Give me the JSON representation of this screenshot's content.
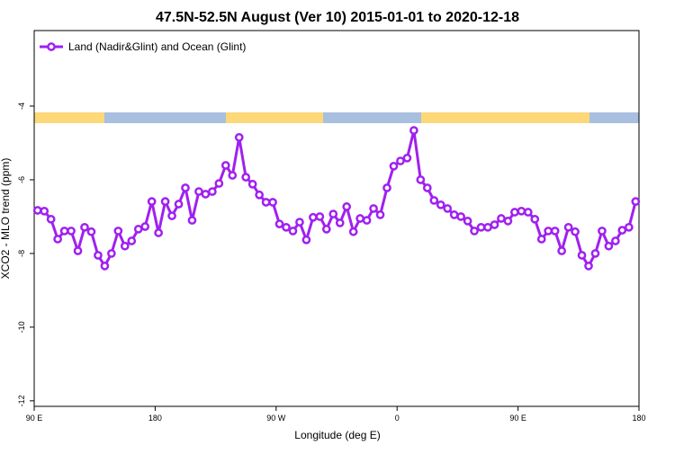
{
  "chart_data": {
    "type": "line",
    "title": "47.5N-52.5N August (Ver 10)   2015-01-01 to 2020-12-18",
    "xlabel": "Longitude (deg E)",
    "ylabel": "XCO2 - MLO trend (ppm)",
    "x": [
      92.5,
      97.5,
      102.5,
      107.5,
      112.5,
      117.5,
      122.5,
      127.5,
      132.5,
      137.5,
      142.5,
      147.5,
      152.5,
      157.5,
      162.5,
      167.5,
      172.5,
      177.5,
      182.5,
      187.5,
      192.5,
      197.5,
      202.5,
      207.5,
      212.5,
      217.5,
      222.5,
      227.5,
      232.5,
      237.5,
      242.5,
      247.5,
      252.5,
      257.5,
      262.5,
      267.5,
      272.5,
      277.5,
      282.5,
      287.5,
      292.5,
      297.5,
      302.5,
      307.5,
      312.5,
      317.5,
      322.5,
      327.5,
      332.5,
      337.5,
      342.5,
      347.5,
      352.5,
      357.5,
      362.5,
      367.5,
      372.5,
      377.5,
      382.5,
      387.5,
      392.5,
      397.5,
      402.5,
      407.5,
      412.5,
      417.5,
      422.5,
      427.5,
      432.5,
      437.5,
      442.5,
      447.5,
      452.5,
      457.5,
      462.5,
      467.5,
      472.5,
      477.5,
      482.5,
      487.5,
      492.5,
      497.5,
      502.5,
      507.5,
      512.5,
      517.5,
      522.5,
      527.5,
      532.5,
      537.5
    ],
    "series": [
      {
        "name": "Land (Nadir&Glint) and Ocean (Glint)",
        "color": "#a020f0",
        "values": [
          -6.83,
          -6.85,
          -7.07,
          -7.61,
          -7.39,
          -7.39,
          -7.93,
          -7.29,
          -7.41,
          -8.05,
          -8.34,
          -8.0,
          -7.39,
          -7.8,
          -7.66,
          -7.34,
          -7.27,
          -6.59,
          -7.44,
          -6.59,
          -6.98,
          -6.66,
          -6.22,
          -7.1,
          -6.32,
          -6.39,
          -6.32,
          -6.1,
          -5.61,
          -5.88,
          -4.85,
          -5.93,
          -6.12,
          -6.41,
          -6.61,
          -6.61,
          -7.2,
          -7.29,
          -7.39,
          -7.15,
          -7.63,
          -7.02,
          -7.0,
          -7.34,
          -6.93,
          -7.17,
          -6.73,
          -7.41,
          -7.05,
          -7.1,
          -6.78,
          -6.95,
          -6.22,
          -5.63,
          -5.49,
          -5.41,
          -4.66,
          -6.0,
          -6.22,
          -6.56,
          -6.68,
          -6.78,
          -6.95,
          -7.0,
          -7.12,
          -7.39,
          -7.29,
          -7.29,
          -7.22,
          -7.05,
          -7.12,
          -6.88,
          -6.85,
          -6.88,
          -7.07,
          -7.61,
          -7.39,
          -7.39,
          -7.93,
          -7.29,
          -7.41,
          -8.05,
          -8.34,
          -8.0,
          -7.39,
          -7.8,
          -7.66,
          -7.37,
          -7.29,
          -6.59
        ]
      }
    ],
    "xlim": [
      90,
      540
    ],
    "xticks": [
      {
        "value": 90,
        "label": "90 E"
      },
      {
        "value": 180,
        "label": "180"
      },
      {
        "value": 270,
        "label": "90 W"
      },
      {
        "value": 360,
        "label": "0"
      },
      {
        "value": 450,
        "label": "90 E"
      },
      {
        "value": 540,
        "label": "180"
      }
    ],
    "ylim": [
      -12.15,
      -1.95
    ],
    "yticks": [
      -12,
      -10,
      -8,
      -6,
      -4
    ],
    "legend": "top-left"
  }
}
